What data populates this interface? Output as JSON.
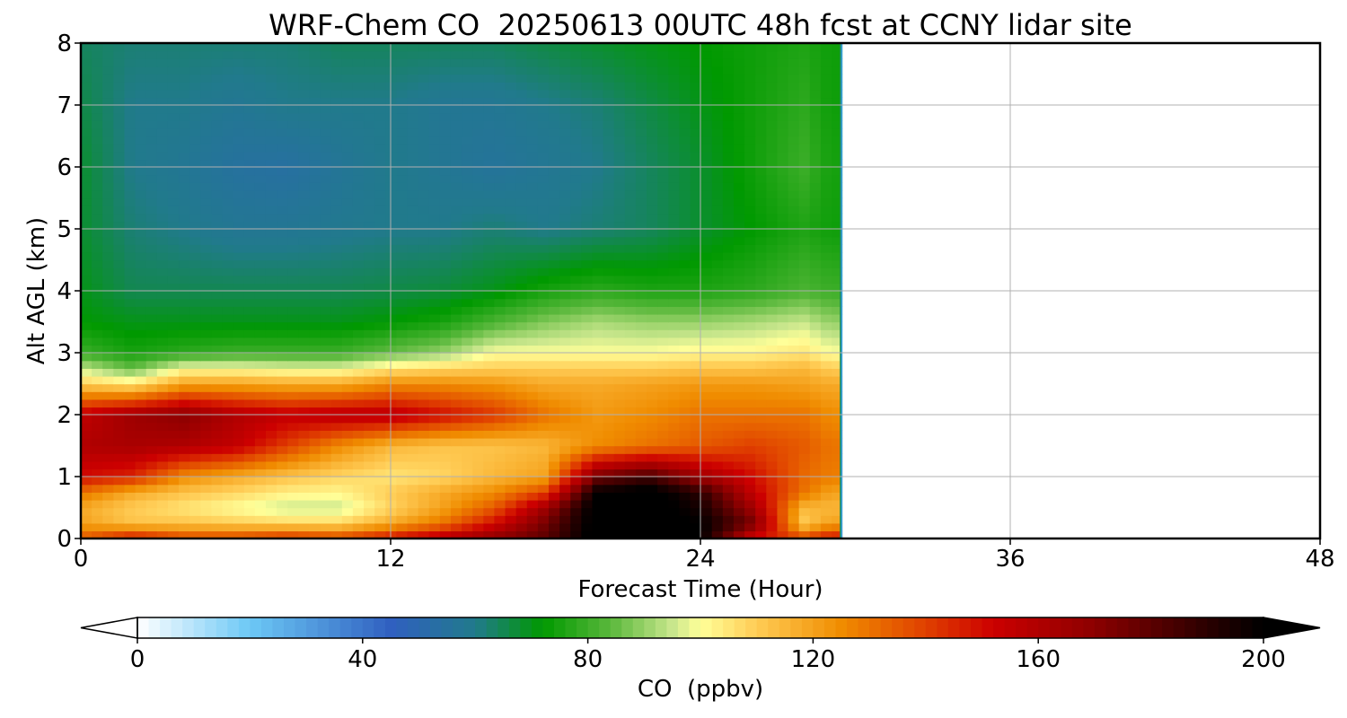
{
  "chart_data": {
    "type": "heatmap",
    "title": "WRF-Chem CO  20250613 00UTC 48h fcst at CCNY lidar site",
    "xlabel": "Forecast Time (Hour)",
    "ylabel": "Alt AGL (km)",
    "xlim": [
      0,
      48
    ],
    "ylim": [
      0,
      8
    ],
    "x_ticks": [
      0,
      12,
      24,
      36,
      48
    ],
    "y_ticks": [
      0,
      1,
      2,
      3,
      4,
      5,
      6,
      7,
      8
    ],
    "grid": true,
    "data_extent_hours": [
      0,
      29.5
    ],
    "x_hours": [
      0,
      2,
      4,
      6,
      8,
      10,
      12,
      14,
      16,
      18,
      20,
      22,
      24,
      26,
      28,
      29
    ],
    "altitudes_km": [
      0,
      0.25,
      0.5,
      0.75,
      1,
      1.5,
      2,
      2.5,
      2.75,
      3,
      3.5,
      4,
      5,
      6,
      7,
      8
    ],
    "values_ppbv": [
      [
        135,
        150,
        140,
        140,
        145,
        140,
        150,
        160,
        170,
        180,
        205,
        205,
        200,
        150,
        140,
        150
      ],
      [
        120,
        112,
        112,
        110,
        108,
        108,
        118,
        130,
        150,
        175,
        205,
        205,
        200,
        175,
        110,
        120
      ],
      [
        118,
        110,
        105,
        100,
        95,
        95,
        108,
        120,
        135,
        165,
        205,
        205,
        195,
        165,
        115,
        115
      ],
      [
        130,
        118,
        112,
        108,
        103,
        102,
        110,
        118,
        125,
        140,
        200,
        205,
        190,
        155,
        130,
        120
      ],
      [
        150,
        145,
        125,
        118,
        112,
        108,
        105,
        108,
        115,
        120,
        175,
        185,
        165,
        150,
        132,
        128
      ],
      [
        160,
        162,
        160,
        155,
        140,
        125,
        115,
        112,
        112,
        115,
        125,
        130,
        135,
        140,
        135,
        130
      ],
      [
        155,
        165,
        170,
        160,
        155,
        158,
        158,
        150,
        142,
        130,
        122,
        125,
        130,
        130,
        130,
        125
      ],
      [
        110,
        105,
        120,
        120,
        118,
        118,
        125,
        125,
        123,
        118,
        118,
        120,
        122,
        122,
        120,
        118
      ],
      [
        95,
        85,
        100,
        100,
        98,
        98,
        105,
        108,
        110,
        110,
        110,
        110,
        112,
        112,
        115,
        110
      ],
      [
        80,
        75,
        78,
        80,
        80,
        80,
        85,
        90,
        100,
        100,
        100,
        100,
        102,
        102,
        105,
        100
      ],
      [
        72,
        70,
        70,
        70,
        70,
        70,
        72,
        75,
        82,
        88,
        92,
        90,
        90,
        92,
        95,
        90
      ],
      [
        70,
        65,
        65,
        65,
        65,
        65,
        66,
        67,
        70,
        75,
        78,
        76,
        76,
        78,
        82,
        80
      ],
      [
        68,
        62,
        60,
        58,
        58,
        59,
        60,
        60,
        62,
        60,
        62,
        64,
        68,
        72,
        76,
        74
      ],
      [
        68,
        60,
        58,
        55,
        54,
        57,
        60,
        58,
        56,
        58,
        60,
        64,
        68,
        74,
        80,
        75
      ],
      [
        66,
        60,
        60,
        58,
        60,
        60,
        60,
        58,
        58,
        60,
        62,
        66,
        70,
        74,
        78,
        74
      ],
      [
        64,
        62,
        62,
        62,
        62,
        64,
        64,
        64,
        64,
        66,
        68,
        70,
        72,
        74,
        76,
        74
      ]
    ],
    "colorbar": {
      "label": "CO  (ppbv)",
      "vmin": 0,
      "vmax": 200,
      "ticks": [
        0,
        40,
        80,
        120,
        160,
        200
      ],
      "extend": "both",
      "color_stops": [
        {
          "v": 0,
          "c": "#ffffff"
        },
        {
          "v": 20,
          "c": "#6cc8f5"
        },
        {
          "v": 45,
          "c": "#3060c0"
        },
        {
          "v": 60,
          "c": "#217a8c"
        },
        {
          "v": 72,
          "c": "#009900"
        },
        {
          "v": 84,
          "c": "#5ab83c"
        },
        {
          "v": 95,
          "c": "#c8e68c"
        },
        {
          "v": 100,
          "c": "#ffff99"
        },
        {
          "v": 110,
          "c": "#ffcc55"
        },
        {
          "v": 125,
          "c": "#f08c00"
        },
        {
          "v": 140,
          "c": "#e04000"
        },
        {
          "v": 152,
          "c": "#cc0000"
        },
        {
          "v": 170,
          "c": "#8c0000"
        },
        {
          "v": 190,
          "c": "#2a0000"
        },
        {
          "v": 200,
          "c": "#000000"
        }
      ]
    }
  }
}
